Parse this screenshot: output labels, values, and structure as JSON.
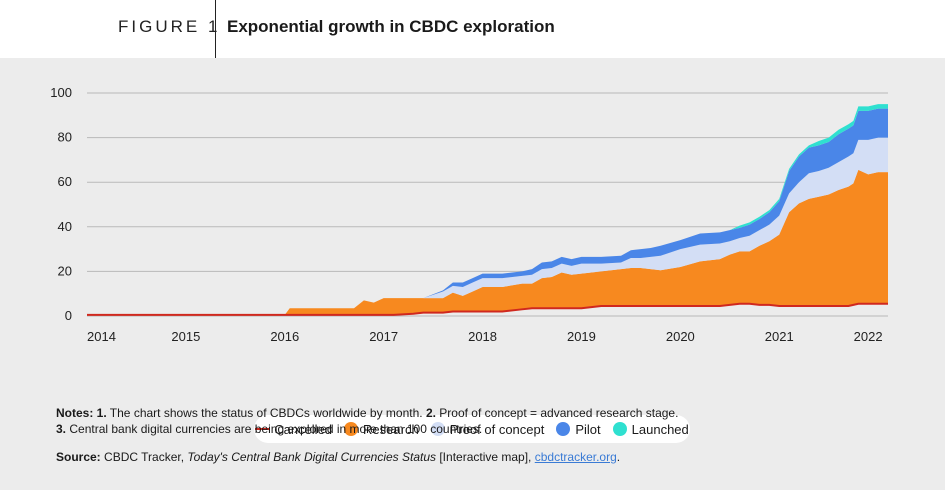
{
  "figure": {
    "label": "FIGURE 1",
    "title": "Exponential growth in CBDC exploration"
  },
  "colors": {
    "cancelled": "#d0281e",
    "research": "#f7891f",
    "proof_of_concept": "#d3def5",
    "pilot": "#4a86e8",
    "launched": "#2fe0d0",
    "gridline": "#b9b9b9",
    "panel": "#ececec"
  },
  "legend": {
    "cancelled": "Cancelled",
    "research": "Research",
    "proof_of_concept": "Proof of concept",
    "pilot": "Pilot",
    "launched": "Launched"
  },
  "notes": {
    "prefix": "Notes: ",
    "n1": "1.",
    "t1": " The chart shows the status of CBDCs worldwide by month. ",
    "n2": "2.",
    "t2": " Proof of concept = advanced research stage.",
    "n3": "3.",
    "t3": " Central bank digital currencies are being explored in more than 100 countries."
  },
  "source": {
    "label": "Source:",
    "text1": " CBDC Tracker, ",
    "title": "Today's Central Bank Digital Currencies Status",
    "text2": " [Interactive map], ",
    "link": "cbdctracker.org",
    "end": "."
  },
  "chart_data": {
    "type": "area",
    "stacked": true,
    "title": "Exponential growth in CBDC exploration",
    "xlabel": "",
    "ylabel": "",
    "xlim": [
      2014,
      2022.1
    ],
    "ylim": [
      0,
      100
    ],
    "yticks": [
      0,
      20,
      40,
      60,
      80,
      100
    ],
    "xticks": [
      2014,
      2015,
      2016,
      2017,
      2018,
      2019,
      2020,
      2021,
      2022
    ],
    "grid": true,
    "legend_position": "bottom",
    "x": [
      2014,
      2016,
      2016.05,
      2016.7,
      2016.8,
      2016.9,
      2017,
      2017.1,
      2017.3,
      2017.4,
      2017.6,
      2017.7,
      2017.8,
      2017.9,
      2018,
      2018.2,
      2018.4,
      2018.5,
      2018.6,
      2018.7,
      2018.8,
      2018.9,
      2019,
      2019.2,
      2019.4,
      2019.5,
      2019.6,
      2019.7,
      2019.8,
      2020,
      2020.2,
      2020.4,
      2020.5,
      2020.6,
      2020.7,
      2020.8,
      2020.9,
      2021,
      2021.1,
      2021.2,
      2021.3,
      2021.4,
      2021.5,
      2021.6,
      2021.7,
      2021.75,
      2021.8,
      2021.9,
      2022,
      2022.1
    ],
    "series": [
      {
        "name": "Cancelled",
        "values": [
          0.5,
          0.5,
          0.5,
          0.5,
          0.5,
          0.5,
          0.5,
          0.5,
          1,
          1.5,
          1.5,
          2,
          2,
          2,
          2,
          2,
          3,
          3.5,
          3.5,
          3.5,
          3.5,
          3.5,
          3.5,
          4.5,
          4.5,
          4.5,
          4.5,
          4.5,
          4.5,
          4.5,
          4.5,
          4.5,
          5,
          5.5,
          5.5,
          5,
          5,
          4.5,
          4.5,
          4.5,
          4.5,
          4.5,
          4.5,
          4.5,
          4.5,
          5,
          5.5,
          5.5,
          5.5,
          5.5
        ]
      },
      {
        "name": "Research",
        "values": [
          0,
          0,
          3,
          3,
          6.5,
          5.5,
          7.5,
          7.5,
          7,
          6.5,
          6.5,
          8.5,
          7,
          9,
          11,
          11,
          11.5,
          11,
          13.5,
          14,
          16,
          15,
          15.5,
          15.5,
          16.5,
          17,
          17,
          16.5,
          16,
          17.5,
          20,
          21,
          22.5,
          23.5,
          23.5,
          26.5,
          28.5,
          32,
          42,
          46,
          48,
          49,
          50,
          52,
          53.5,
          54.5,
          60,
          58,
          59,
          59
        ]
      },
      {
        "name": "Proof of concept",
        "values": [
          0,
          0,
          0,
          0,
          0,
          0,
          0,
          0,
          0,
          0,
          3,
          3,
          4,
          4,
          4,
          4,
          3.5,
          4,
          4,
          4,
          4,
          4,
          4.5,
          3.5,
          3,
          4.5,
          4.5,
          5.5,
          6.5,
          8,
          7.5,
          7,
          6,
          6,
          7,
          7,
          7.5,
          8.5,
          8.5,
          9.5,
          11.5,
          11.5,
          12,
          12.5,
          13.5,
          13.5,
          13.5,
          15.5,
          15.5,
          15.5
        ]
      },
      {
        "name": "Pilot",
        "values": [
          0,
          0,
          0,
          0,
          0,
          0,
          0,
          0,
          0,
          0,
          0.5,
          1.5,
          2,
          2,
          2,
          2,
          2,
          2.5,
          3,
          3,
          3,
          3,
          3,
          3,
          3,
          3.5,
          4,
          4,
          4.5,
          4,
          5,
          5,
          5,
          4.5,
          5,
          5,
          5.5,
          6.5,
          10,
          11.5,
          11.5,
          11.5,
          11.5,
          12.5,
          12.5,
          12.5,
          13,
          13,
          13,
          13
        ]
      },
      {
        "name": "Launched",
        "values": [
          0,
          0,
          0,
          0,
          0,
          0,
          0,
          0,
          0,
          0,
          0,
          0,
          0,
          0,
          0,
          0,
          0,
          0,
          0,
          0,
          0,
          0,
          0,
          0,
          0,
          0,
          0,
          0,
          0,
          0,
          0,
          0,
          0,
          1,
          1,
          1,
          1,
          1,
          1,
          1,
          1,
          2,
          2,
          2,
          2,
          2,
          2,
          2,
          2,
          2
        ]
      }
    ]
  }
}
